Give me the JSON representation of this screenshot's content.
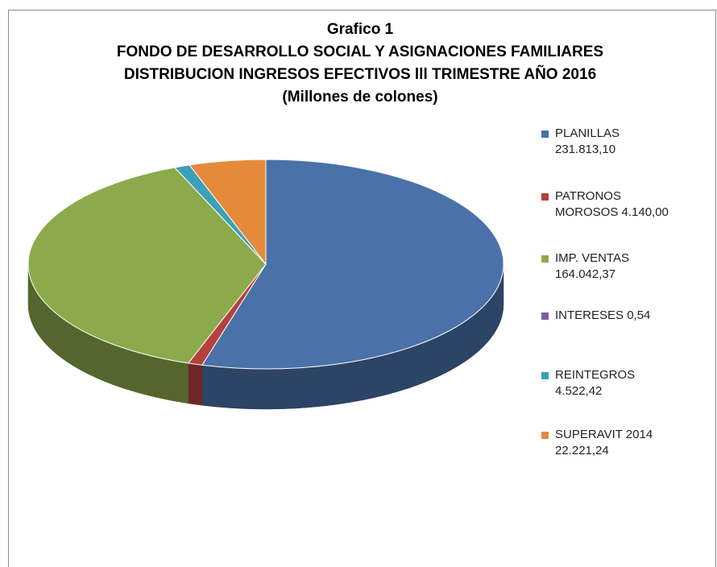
{
  "chart_data": {
    "type": "pie3d",
    "title": "Grafico 1",
    "subtitle": [
      "FONDO DE DESARROLLO SOCIAL Y ASIGNACIONES FAMILIARES",
      "DISTRIBUCION INGRESOS EFECTIVOS  lll TRIMESTRE AÑO 2016",
      "(Millones de colones)"
    ],
    "categories": [
      "PLANILLAS",
      "PATRONOS MOROSOS",
      "IMP. VENTAS",
      "INTERESES",
      "REINTEGROS",
      "SUPERAVIT 2014"
    ],
    "values": [
      231813.1,
      4140.0,
      164042.37,
      0.54,
      4522.42,
      22221.24
    ],
    "value_labels": [
      "231.813,10",
      "4.140,00",
      "164.042,37",
      "0,54",
      "4.522,42",
      "22.221,24"
    ],
    "colors": [
      "#4a72a8",
      "#b5413f",
      "#8caa4b",
      "#7d5fa0",
      "#3ba0b8",
      "#e58a3a"
    ],
    "legend": "right"
  }
}
